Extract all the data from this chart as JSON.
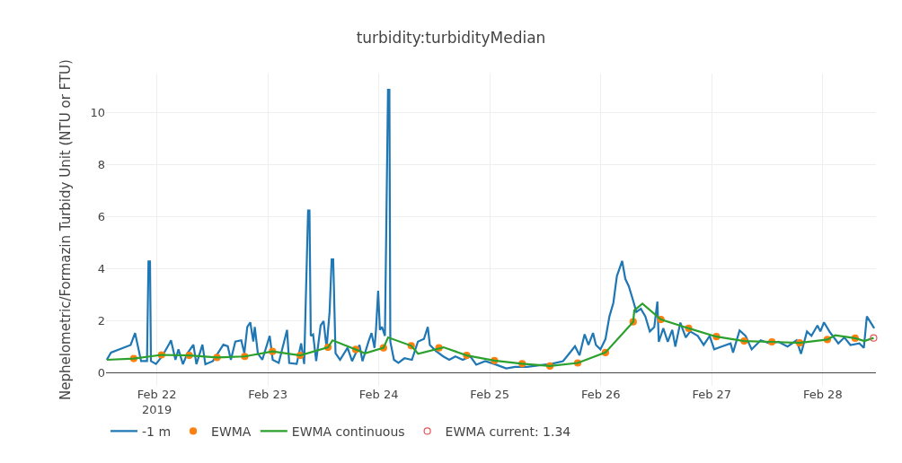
{
  "chart_data": {
    "type": "line",
    "title": "turbidity:turbidityMedian",
    "ylabel": "Nephelometric/Formazin Turbidy Unit (NTU or FTU)",
    "xlim": [
      "2019-02-21T13:00",
      "2019-02-28T11:30"
    ],
    "xticks": [
      {
        "value": "2019-02-22",
        "label": "Feb 22\n2019"
      },
      {
        "value": "2019-02-23",
        "label": "Feb 23"
      },
      {
        "value": "2019-02-24",
        "label": "Feb 24"
      },
      {
        "value": "2019-02-25",
        "label": "Feb 25"
      },
      {
        "value": "2019-02-26",
        "label": "Feb 26"
      },
      {
        "value": "2019-02-27",
        "label": "Feb 27"
      },
      {
        "value": "2019-02-28",
        "label": "Feb 28"
      }
    ],
    "ylim": [
      -0.5,
      11.5
    ],
    "yticks": [
      0,
      2,
      4,
      6,
      8,
      10
    ],
    "grid": true,
    "legend": "bottom",
    "series": [
      {
        "name": "-1 m",
        "color": "#1f77b4",
        "marker": "none",
        "x": [
          "2019-02-21T13:10",
          "2019-02-21T14:05",
          "2019-02-21T18:20",
          "2019-02-21T19:17",
          "2019-02-21T20:35",
          "2019-02-21T21:52",
          "2019-02-21T22:11",
          "2019-02-21T22:31",
          "2019-02-21T22:43",
          "2019-02-21T23:49",
          "2019-02-22T01:07",
          "2019-02-22T02:43",
          "2019-02-22T03:03",
          "2019-02-22T04:01",
          "2019-02-22T04:40",
          "2019-02-22T05:38",
          "2019-02-22T06:36",
          "2019-02-22T07:54",
          "2019-02-22T08:33",
          "2019-02-22T09:51",
          "2019-02-22T10:29",
          "2019-02-22T12:07",
          "2019-02-22T14:22",
          "2019-02-22T15:20",
          "2019-02-22T16:00",
          "2019-02-22T16:58",
          "2019-02-22T18:15",
          "2019-02-22T18:55",
          "2019-02-22T19:33",
          "2019-02-22T20:12",
          "2019-02-22T20:51",
          "2019-02-22T21:10",
          "2019-02-22T21:50",
          "2019-02-22T22:48",
          "2019-02-23T00:24",
          "2019-02-23T01:03",
          "2019-02-23T02:21",
          "2019-02-23T04:09",
          "2019-02-23T04:37",
          "2019-02-23T06:14",
          "2019-02-23T07:12",
          "2019-02-23T07:51",
          "2019-02-23T08:42",
          "2019-02-23T09:00",
          "2019-02-23T09:17",
          "2019-02-23T09:47",
          "2019-02-23T10:27",
          "2019-02-23T11:25",
          "2019-02-23T12:03",
          "2019-02-23T12:42",
          "2019-02-23T13:21",
          "2019-02-23T13:48",
          "2019-02-23T14:08",
          "2019-02-23T14:38",
          "2019-02-23T15:37",
          "2019-02-23T17:14",
          "2019-02-23T18:13",
          "2019-02-23T19:49",
          "2019-02-23T20:28",
          "2019-02-23T21:46",
          "2019-02-23T22:25",
          "2019-02-23T23:04",
          "2019-02-23T23:23",
          "2019-02-23T23:51",
          "2019-02-24T00:14",
          "2019-02-24T00:41",
          "2019-02-24T01:19",
          "2019-02-24T01:59",
          "2019-02-24T02:17",
          "2019-02-24T02:29",
          "2019-02-24T03:16",
          "2019-02-24T04:14",
          "2019-02-24T05:32",
          "2019-02-24T07:09",
          "2019-02-24T08:27",
          "2019-02-24T09:45",
          "2019-02-24T10:35",
          "2019-02-24T11:02",
          "2019-02-24T12:20",
          "2019-02-24T13:56",
          "2019-02-24T15:14",
          "2019-02-24T16:33",
          "2019-02-24T18:09",
          "2019-02-24T19:46",
          "2019-02-24T21:04",
          "2019-02-24T23:01",
          "2019-02-25T00:57",
          "2019-02-25T03:32",
          "2019-02-25T05:28",
          "2019-02-25T08:05",
          "2019-02-25T10:40",
          "2019-02-25T13:14",
          "2019-02-25T15:50",
          "2019-02-25T17:27",
          "2019-02-25T18:25",
          "2019-02-25T19:24",
          "2019-02-25T20:30",
          "2019-02-25T21:20",
          "2019-02-25T22:19",
          "2019-02-25T22:57",
          "2019-02-25T23:55",
          "2019-02-26T01:01",
          "2019-02-26T01:52",
          "2019-02-26T02:43",
          "2019-02-26T03:29",
          "2019-02-26T04:37",
          "2019-02-26T05:18",
          "2019-02-26T06:04",
          "2019-02-26T07:03",
          "2019-02-26T07:41",
          "2019-02-26T08:40",
          "2019-02-26T09:38",
          "2019-02-26T10:36",
          "2019-02-26T11:34",
          "2019-02-26T12:14",
          "2019-02-26T12:32",
          "2019-02-26T13:31",
          "2019-02-26T14:29",
          "2019-02-26T15:27",
          "2019-02-26T16:07",
          "2019-02-26T17:12",
          "2019-02-26T18:22",
          "2019-02-26T19:20",
          "2019-02-26T20:58",
          "2019-02-26T22:15",
          "2019-02-26T23:33",
          "2019-02-27T00:31",
          "2019-02-27T02:08",
          "2019-02-27T04:04",
          "2019-02-27T04:36",
          "2019-02-27T06:01",
          "2019-02-27T07:19",
          "2019-02-27T08:37",
          "2019-02-27T10:34",
          "2019-02-27T12:30",
          "2019-02-27T14:26",
          "2019-02-27T16:23",
          "2019-02-27T18:20",
          "2019-02-27T19:18",
          "2019-02-27T20:35",
          "2019-02-27T21:33",
          "2019-02-27T22:51",
          "2019-02-27T23:29",
          "2019-02-28T00:16",
          "2019-02-28T01:26",
          "2019-02-28T03:22",
          "2019-02-28T04:40",
          "2019-02-28T05:59",
          "2019-02-28T07:55",
          "2019-02-28T08:53",
          "2019-02-28T09:32",
          "2019-02-28T11:08"
        ],
        "values": [
          0.5,
          0.78,
          1.07,
          1.53,
          0.45,
          0.45,
          4.28,
          4.28,
          0.45,
          0.34,
          0.63,
          1.13,
          1.25,
          0.5,
          0.9,
          0.33,
          0.75,
          1.08,
          0.33,
          1.08,
          0.33,
          0.45,
          1.08,
          1.02,
          0.5,
          1.2,
          1.25,
          0.75,
          1.76,
          1.94,
          1.2,
          1.76,
          0.75,
          0.5,
          1.42,
          0.5,
          0.38,
          1.65,
          0.38,
          0.34,
          1.13,
          0.34,
          6.24,
          6.24,
          1.42,
          1.48,
          0.45,
          1.82,
          1.99,
          0.96,
          2.34,
          4.36,
          4.36,
          0.75,
          0.5,
          0.96,
          0.45,
          1.07,
          0.45,
          1.2,
          1.53,
          0.96,
          1.65,
          3.15,
          1.65,
          1.76,
          1.42,
          10.88,
          10.88,
          1.2,
          0.5,
          0.38,
          0.56,
          0.5,
          1.2,
          1.3,
          1.76,
          1.07,
          0.84,
          0.63,
          0.5,
          0.63,
          0.5,
          0.63,
          0.31,
          0.45,
          0.34,
          0.17,
          0.23,
          0.23,
          0.29,
          0.34,
          0.45,
          0.8,
          1.02,
          0.67,
          1.48,
          1.07,
          1.53,
          1.07,
          0.9,
          1.3,
          2.17,
          2.69,
          3.72,
          4.3,
          3.61,
          3.32,
          2.74,
          2.34,
          2.46,
          2.17,
          1.59,
          1.76,
          2.74,
          1.19,
          1.71,
          1.19,
          1.65,
          1.01,
          1.93,
          1.36,
          1.59,
          1.42,
          1.07,
          1.42,
          0.9,
          1.01,
          1.13,
          0.78,
          1.63,
          1.42,
          0.9,
          1.25,
          1.13,
          1.19,
          1.01,
          1.25,
          0.73,
          1.59,
          1.42,
          1.82,
          1.59,
          1.94,
          1.59,
          1.13,
          1.36,
          1.07,
          1.13,
          0.96,
          2.17,
          1.71
        ]
      },
      {
        "name": "EWMA",
        "type": "scatter",
        "color": "#ff7f0e",
        "marker": "circle",
        "x": [
          "2019-02-21T19:00",
          "2019-02-22T01:00",
          "2019-02-22T07:00",
          "2019-02-22T13:00",
          "2019-02-22T19:00",
          "2019-02-23T01:00",
          "2019-02-23T07:00",
          "2019-02-23T13:00",
          "2019-02-23T19:00",
          "2019-02-24T01:00",
          "2019-02-24T07:00",
          "2019-02-24T13:00",
          "2019-02-24T19:00",
          "2019-02-25T01:00",
          "2019-02-25T07:00",
          "2019-02-25T13:00",
          "2019-02-25T19:00",
          "2019-02-26T01:00",
          "2019-02-26T07:00",
          "2019-02-26T13:00",
          "2019-02-26T19:00",
          "2019-02-27T01:00",
          "2019-02-27T07:00",
          "2019-02-27T13:00",
          "2019-02-27T19:00",
          "2019-02-28T01:00",
          "2019-02-28T07:00"
        ],
        "values": [
          0.55,
          0.69,
          0.67,
          0.59,
          0.63,
          0.82,
          0.67,
          0.98,
          0.9,
          0.96,
          1.04,
          0.96,
          0.67,
          0.47,
          0.35,
          0.26,
          0.38,
          0.78,
          1.96,
          2.05,
          1.71,
          1.39,
          1.22,
          1.19,
          1.15,
          1.28,
          1.33
        ]
      },
      {
        "name": "EWMA continuous",
        "color": "#2ca02c",
        "marker": "none",
        "x": [
          "2019-02-21T13:10",
          "2019-02-21T19:00",
          "2019-02-22T01:00",
          "2019-02-22T07:00",
          "2019-02-22T13:00",
          "2019-02-22T19:00",
          "2019-02-23T01:00",
          "2019-02-23T07:00",
          "2019-02-23T13:00",
          "2019-02-23T14:00",
          "2019-02-23T19:00",
          "2019-02-23T21:00",
          "2019-02-24T01:00",
          "2019-02-24T02:00",
          "2019-02-24T07:00",
          "2019-02-24T08:30",
          "2019-02-24T14:00",
          "2019-02-24T19:00",
          "2019-02-25T01:00",
          "2019-02-25T07:00",
          "2019-02-25T13:00",
          "2019-02-25T19:00",
          "2019-02-26T01:00",
          "2019-02-26T07:00",
          "2019-02-26T07:15",
          "2019-02-26T09:00",
          "2019-02-26T13:00",
          "2019-02-26T19:00",
          "2019-02-27T01:00",
          "2019-02-27T07:00",
          "2019-02-27T13:00",
          "2019-02-27T19:00",
          "2019-02-28T01:00",
          "2019-02-28T02:40",
          "2019-02-28T07:00",
          "2019-02-28T09:00",
          "2019-02-28T11:00"
        ],
        "values": [
          0.5,
          0.55,
          0.69,
          0.67,
          0.59,
          0.63,
          0.82,
          0.67,
          0.98,
          1.25,
          0.9,
          0.75,
          0.96,
          1.36,
          1.04,
          0.73,
          0.98,
          0.67,
          0.47,
          0.35,
          0.26,
          0.38,
          0.78,
          1.96,
          2.4,
          2.66,
          2.05,
          1.71,
          1.39,
          1.22,
          1.19,
          1.15,
          1.28,
          1.44,
          1.33,
          1.22,
          1.34
        ]
      },
      {
        "name": "EWMA current: 1.34",
        "type": "scatter",
        "color": "#e45756",
        "marker": "circle-open",
        "x": [
          "2019-02-28T11:00"
        ],
        "values": [
          1.34
        ]
      }
    ]
  }
}
